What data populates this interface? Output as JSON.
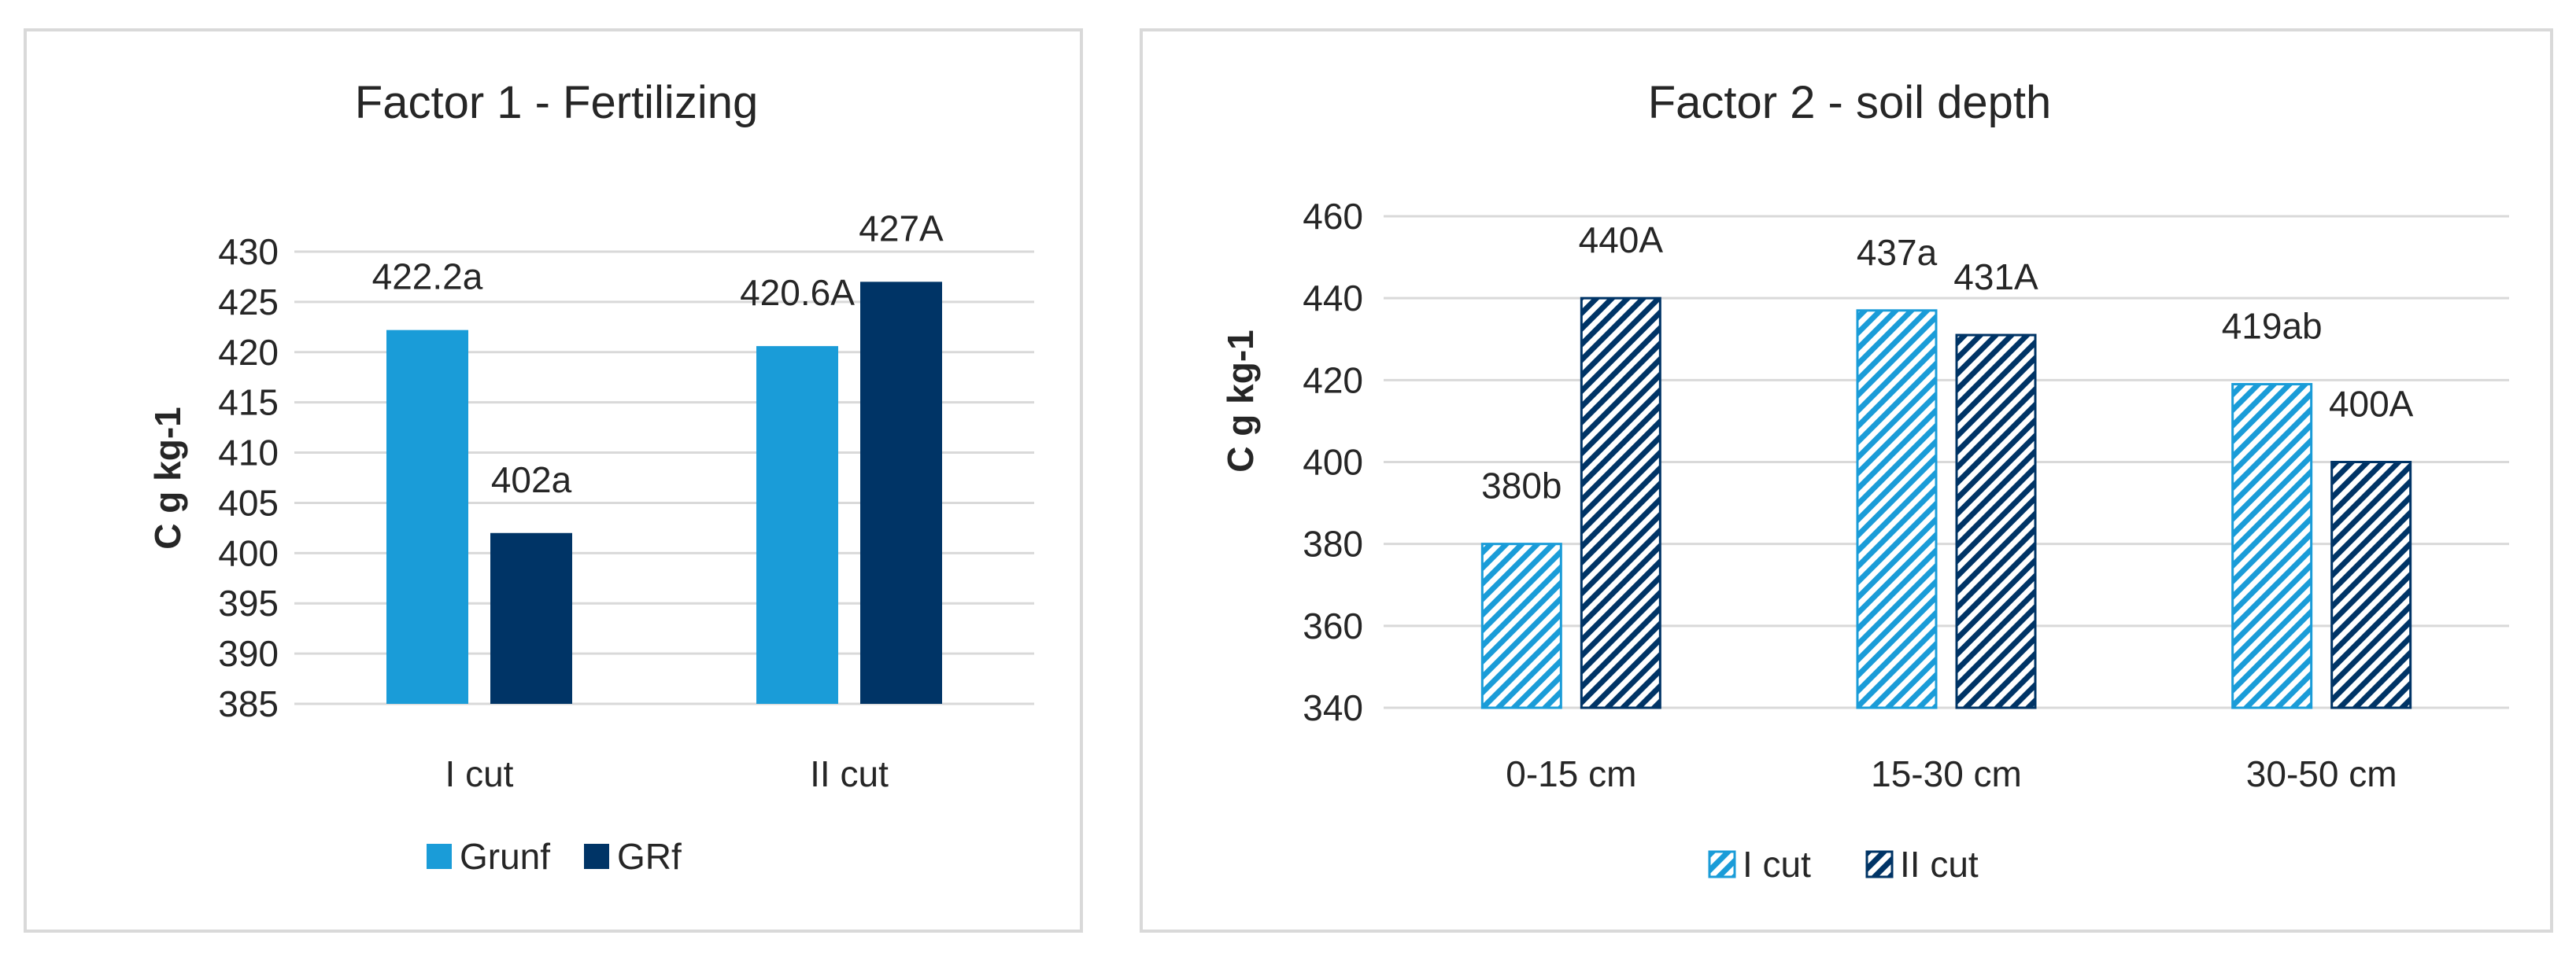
{
  "colors": {
    "grunf": "#1a9cd8",
    "grf": "#003466",
    "grid": "#d9d9d9",
    "text": "#262626"
  },
  "chart_data": [
    {
      "type": "bar",
      "title": "Factor 1 - Fertilizing",
      "ylabel": "C g kg-1",
      "xlabel": "",
      "categories": [
        "I cut",
        "II cut"
      ],
      "ylim": [
        385,
        430
      ],
      "yticks": [
        385,
        390,
        395,
        400,
        405,
        410,
        415,
        420,
        425,
        430
      ],
      "grid": true,
      "legend": "bottom",
      "series": [
        {
          "name": "Grunf",
          "values": [
            422.2,
            420.6
          ],
          "labels": [
            "422.2a",
            "420.6A"
          ],
          "color": "#1a9cd8",
          "pattern": "solid"
        },
        {
          "name": "GRf",
          "values": [
            402,
            427
          ],
          "labels": [
            "402a",
            "427A"
          ],
          "color": "#003466",
          "pattern": "solid"
        }
      ]
    },
    {
      "type": "bar",
      "title": "Factor 2 - soil depth",
      "ylabel": "C g kg-1",
      "xlabel": "",
      "categories": [
        "0-15 cm",
        "15-30 cm",
        "30-50 cm"
      ],
      "ylim": [
        340,
        460
      ],
      "yticks": [
        340,
        360,
        380,
        400,
        420,
        440,
        460
      ],
      "grid": true,
      "legend": "bottom",
      "series": [
        {
          "name": "I cut",
          "values": [
            380,
            437,
            419
          ],
          "labels": [
            "380b",
            "437a",
            "419ab"
          ],
          "color": "#1a9cd8",
          "pattern": "hatch"
        },
        {
          "name": "II cut",
          "values": [
            440,
            431,
            400
          ],
          "labels": [
            "440A",
            "431A",
            "400A"
          ],
          "color": "#003466",
          "pattern": "hatch"
        }
      ]
    }
  ]
}
